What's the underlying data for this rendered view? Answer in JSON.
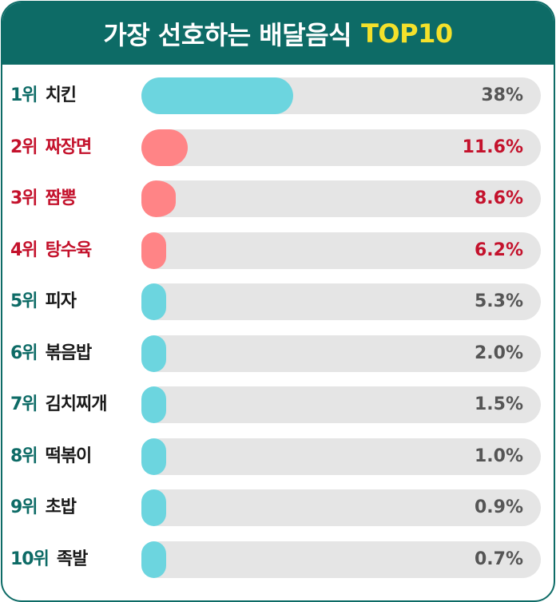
{
  "header": {
    "title_ko": "가장 선호하는 배달음식",
    "title_en": "TOP10"
  },
  "colors": {
    "header_bg": "#0d6b66",
    "title_accent": "#f4e12b",
    "bar_teal": "#6cd5df",
    "bar_pink": "#ff8486",
    "track": "#e5e5e5",
    "highlight_text": "#c4122c"
  },
  "chart_data": {
    "type": "bar",
    "orientation": "horizontal",
    "title": "가장 선호하는 배달음식 TOP10",
    "xlim": [
      0,
      100
    ],
    "unit": "%",
    "items": [
      {
        "rank": "1위",
        "name": "치킨",
        "value": 38,
        "label": "38%",
        "highlight": false
      },
      {
        "rank": "2위",
        "name": "짜장면",
        "value": 11.6,
        "label": "11.6%",
        "highlight": true
      },
      {
        "rank": "3위",
        "name": "짬뽕",
        "value": 8.6,
        "label": "8.6%",
        "highlight": true
      },
      {
        "rank": "4위",
        "name": "탕수육",
        "value": 6.2,
        "label": "6.2%",
        "highlight": true
      },
      {
        "rank": "5위",
        "name": "피자",
        "value": 5.3,
        "label": "5.3%",
        "highlight": false
      },
      {
        "rank": "6위",
        "name": "볶음밥",
        "value": 2.0,
        "label": "2.0%",
        "highlight": false
      },
      {
        "rank": "7위",
        "name": "김치찌개",
        "value": 1.5,
        "label": "1.5%",
        "highlight": false
      },
      {
        "rank": "8위",
        "name": "떡볶이",
        "value": 1.0,
        "label": "1.0%",
        "highlight": false
      },
      {
        "rank": "9위",
        "name": "초밥",
        "value": 0.9,
        "label": "0.9%",
        "highlight": false
      },
      {
        "rank": "10위",
        "name": "족발",
        "value": 0.7,
        "label": "0.7%",
        "highlight": false
      }
    ]
  }
}
